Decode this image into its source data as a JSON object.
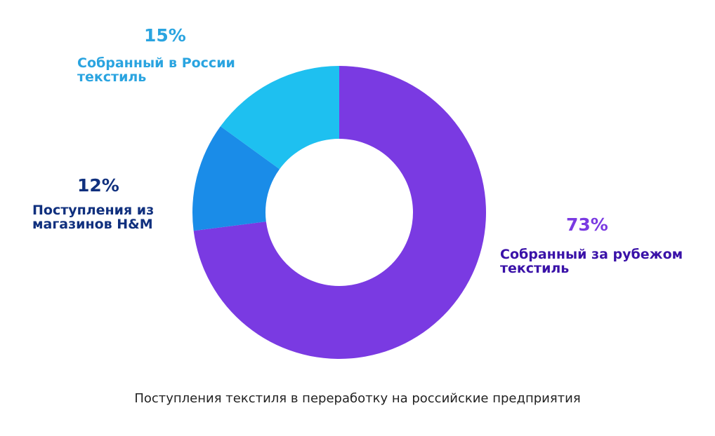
{
  "chart_data": {
    "type": "pie",
    "donut": true,
    "title": "Поступления текстиля в переработку на российские предприятия",
    "slices": [
      {
        "label": "Собранный за рубежом текстиль",
        "value": 73,
        "value_label": "73%",
        "color": "#7a3ae2",
        "label_color": "#3a12a8",
        "value_color": "#7a3ae2"
      },
      {
        "label": "Поступления из магазинов H&M",
        "value": 12,
        "value_label": "12%",
        "color": "#1a8ce8",
        "label_color": "#10307e",
        "value_color": "#10307e"
      },
      {
        "label": "Собранный в России текстиль",
        "value": 15,
        "value_label": "15%",
        "color": "#1ec0f0",
        "label_color": "#2aa4e0",
        "value_color": "#2aa4e0"
      }
    ],
    "start": "top",
    "direction": "clockwise"
  }
}
